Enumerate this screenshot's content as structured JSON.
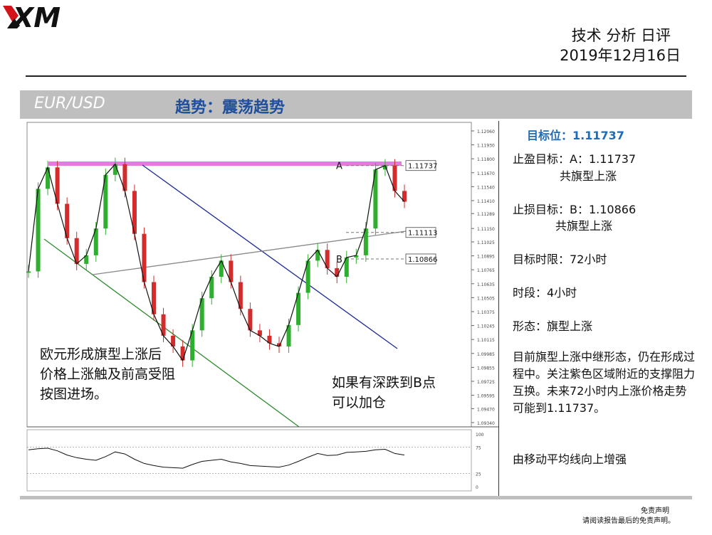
{
  "header": {
    "logo": "XM",
    "title": "技术 分析 日评",
    "date": "2019年12月16日"
  },
  "banner": {
    "pair": "EUR/USD",
    "trend": "趋势：震荡趋势"
  },
  "panel": {
    "target": "目标位：1.11737",
    "tp_line1": "止盈目标：A：1.11737",
    "tp_line2": "共旗型上涨",
    "sl_line1": "止损目标：B：1.10866",
    "sl_line2": "共旗型上涨",
    "time_limit": "目标时限：72小时",
    "timeframe": "时段：4小时",
    "pattern": "形态：旗型上涨",
    "description": "目前旗型上涨中继形态，仍在形成过程中。关注紫色区域附近的支撑阻力互换。未来72小时内上涨价格走势可能到1.11737。",
    "ma_note": "由移动平均线向上增强"
  },
  "chart_data": {
    "type": "line",
    "series": [
      {
        "values": [
          1.1075,
          1.1152,
          1.1172,
          1.1138,
          1.1106,
          1.1082,
          1.109,
          1.1115,
          1.1165,
          1.1175,
          1.115,
          1.111,
          1.1065,
          1.1035,
          1.1015,
          1.1005,
          1.0992,
          1.102,
          1.105,
          1.107,
          1.1085,
          1.1065,
          1.104,
          1.102,
          1.1015,
          1.1008,
          1.1005,
          1.1025,
          1.1055,
          1.1085,
          1.1095,
          1.1078,
          1.107,
          1.1088,
          1.109,
          1.1115,
          1.117,
          1.11737,
          1.115,
          1.114
        ]
      }
    ],
    "y_ticks": [
      "1.12060",
      "1.11930",
      "1.11800",
      "1.11670",
      "1.11540",
      "1.11410",
      "1.11289",
      "1.11150",
      "1.11025",
      "1.10895",
      "1.10765",
      "1.10635",
      "1.10505",
      "1.10375",
      "1.10245",
      "1.10115",
      "1.09985",
      "1.09855",
      "1.09725",
      "1.09595",
      "1.09470",
      "1.09340"
    ],
    "ylim": [
      1.0934,
      1.1206
    ],
    "levels": [
      {
        "label": "A",
        "price": 1.11737,
        "tag": "1.11737"
      },
      {
        "label": "",
        "price": 1.11113,
        "tag": "1.11113"
      },
      {
        "label": "B",
        "price": 1.10866,
        "tag": "1.10866"
      }
    ],
    "annotations": [
      "欧元形成旗型上涨后",
      "价格上涨触及前高受阻",
      "按图进场。",
      "如果有深跌到B点",
      "可以加仓"
    ],
    "oscillator": {
      "y_ticks": [
        "100",
        "75",
        "25",
        "0"
      ],
      "ylim": [
        0,
        100
      ],
      "values": [
        70,
        72,
        73,
        68,
        60,
        55,
        52,
        50,
        57,
        66,
        62,
        52,
        44,
        40,
        37,
        36,
        35,
        42,
        48,
        50,
        52,
        47,
        44,
        40,
        39,
        38,
        37,
        41,
        48,
        56,
        63,
        59,
        60,
        65,
        66,
        67,
        70,
        71,
        63,
        60
      ]
    },
    "grid": false
  }
}
